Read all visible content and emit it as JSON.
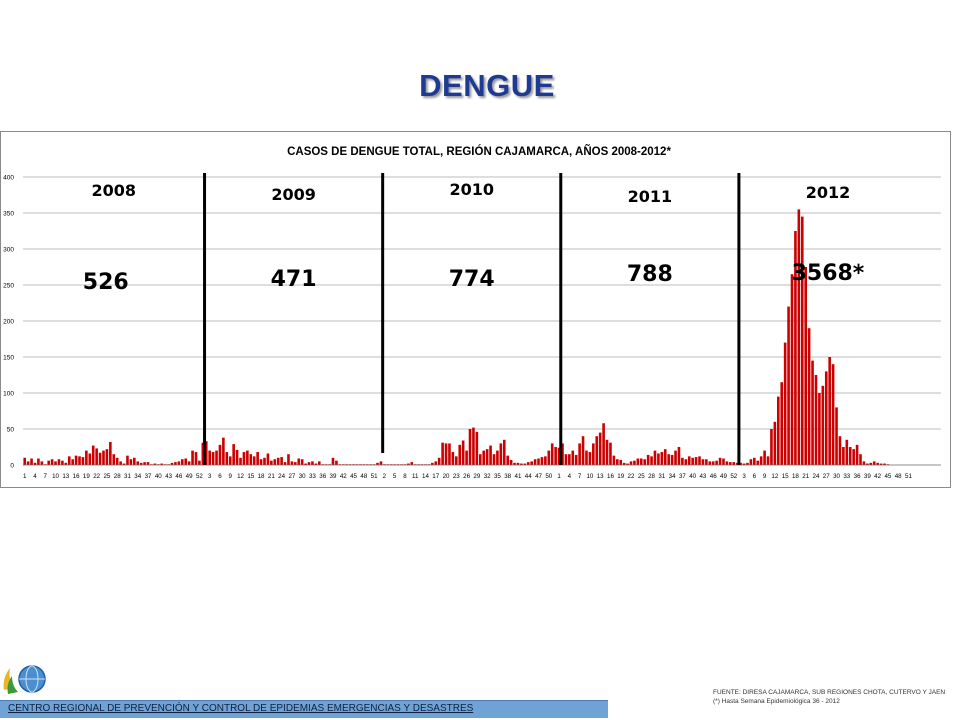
{
  "page": {
    "title": "DENGUE",
    "footer": "CENTRO REGIONAL DE PREVENCIÓN Y CONTROL DE EPIDEMIAS EMERGENCIAS Y DESASTRES",
    "source_line1": "FUENTE: DIRESA CAJAMARCA, SUB REGIONES CHOTA, CUTERVO Y JAEN",
    "source_line2": "(*) Hasta Semana Epidemiológica 36 - 2012"
  },
  "colors": {
    "bar": "#cc0000",
    "grid": "#a6a6a6",
    "title": "#1f3a93",
    "footer": "#6fa3d6"
  },
  "chart_data": {
    "type": "bar",
    "title": "CASOS DE DENGUE TOTAL, REGIÓN CAJAMARCA, AÑOS 2008-2012*",
    "xlabel": "",
    "ylabel": "",
    "ylim": [
      0,
      400
    ],
    "yticks": [
      0,
      50,
      100,
      150,
      200,
      250,
      300,
      350,
      400
    ],
    "grid": true,
    "legend": "none",
    "x_tick_labels": [
      "1",
      "4",
      "7",
      "10",
      "13",
      "16",
      "19",
      "22",
      "25",
      "28",
      "31",
      "34",
      "37",
      "40",
      "43",
      "46",
      "49",
      "52",
      "3",
      "6",
      "9",
      "12",
      "15",
      "18",
      "21",
      "24",
      "27",
      "30",
      "33",
      "36",
      "39",
      "42",
      "45",
      "48",
      "51",
      "2",
      "5",
      "8",
      "11",
      "14",
      "17",
      "20",
      "23",
      "26",
      "29",
      "32",
      "35",
      "38",
      "41",
      "44",
      "47",
      "50",
      "1",
      "4",
      "7",
      "10",
      "13",
      "16",
      "19",
      "22",
      "25",
      "28",
      "31",
      "34",
      "37",
      "40",
      "43",
      "46",
      "49",
      "52",
      "3",
      "6",
      "9",
      "12",
      "15",
      "18",
      "21",
      "24",
      "27",
      "30",
      "33",
      "36",
      "39",
      "42",
      "45",
      "48",
      "51"
    ],
    "year_labels": [
      "2008",
      "2009",
      "2010",
      "2011",
      "2012"
    ],
    "year_totals": [
      "526",
      "471",
      "774",
      "788",
      "3568*"
    ],
    "year_week_counts": [
      53,
      52,
      52,
      52,
      52
    ],
    "series": [
      {
        "values": [
          10,
          5,
          9,
          3,
          9,
          5,
          1,
          6,
          8,
          5,
          8,
          6,
          3,
          12,
          8,
          13,
          12,
          11,
          20,
          16,
          27,
          23,
          17,
          20,
          22,
          32,
          15,
          10,
          5,
          2,
          13,
          8,
          10,
          5,
          3,
          4,
          4,
          1,
          2,
          1,
          2,
          1,
          1,
          3,
          4,
          5,
          8,
          9,
          5,
          20,
          18,
          6,
          31,
          33,
          20,
          18,
          20,
          28,
          38,
          18,
          12,
          29,
          21,
          10,
          18,
          20,
          15,
          12,
          18,
          8,
          10,
          16,
          6,
          8,
          10,
          11,
          4,
          15,
          5,
          4,
          9,
          8,
          2,
          4,
          5,
          2,
          5,
          1,
          1,
          1,
          10,
          6,
          1,
          1,
          1,
          1,
          1,
          1,
          1,
          1,
          1,
          1,
          1,
          3,
          5,
          1,
          1,
          1,
          1,
          1,
          1,
          1,
          2,
          4,
          1,
          1,
          1,
          1,
          1,
          3,
          5,
          10,
          31,
          30,
          30,
          18,
          12,
          28,
          34,
          20,
          50,
          52,
          46,
          15,
          20,
          22,
          27,
          15,
          20,
          30,
          35,
          13,
          7,
          3,
          3,
          2,
          2,
          4,
          5,
          8,
          9,
          11,
          12,
          20,
          30,
          25,
          24,
          30,
          15,
          15,
          20,
          14,
          30,
          40,
          20,
          18,
          30,
          40,
          45,
          58,
          35,
          31,
          13,
          8,
          7,
          3,
          2,
          5,
          6,
          9,
          9,
          8,
          14,
          12,
          20,
          16,
          18,
          22,
          15,
          14,
          20,
          25,
          10,
          8,
          12,
          10,
          11,
          12,
          8,
          8,
          5,
          5,
          6,
          10,
          9,
          5,
          4,
          4,
          3,
          3,
          2,
          3,
          8,
          10,
          6,
          12,
          20,
          12,
          50,
          60,
          95,
          115,
          170,
          220,
          265,
          325,
          355,
          345,
          275,
          190,
          145,
          125,
          100,
          110,
          130,
          150,
          140,
          80,
          40,
          25,
          35,
          25,
          22,
          28,
          15,
          5,
          2,
          3,
          5,
          3,
          2,
          2,
          1,
          0,
          0,
          0,
          0,
          0,
          0,
          0,
          0,
          0,
          0,
          0,
          0,
          0,
          0,
          0
        ]
      }
    ]
  }
}
